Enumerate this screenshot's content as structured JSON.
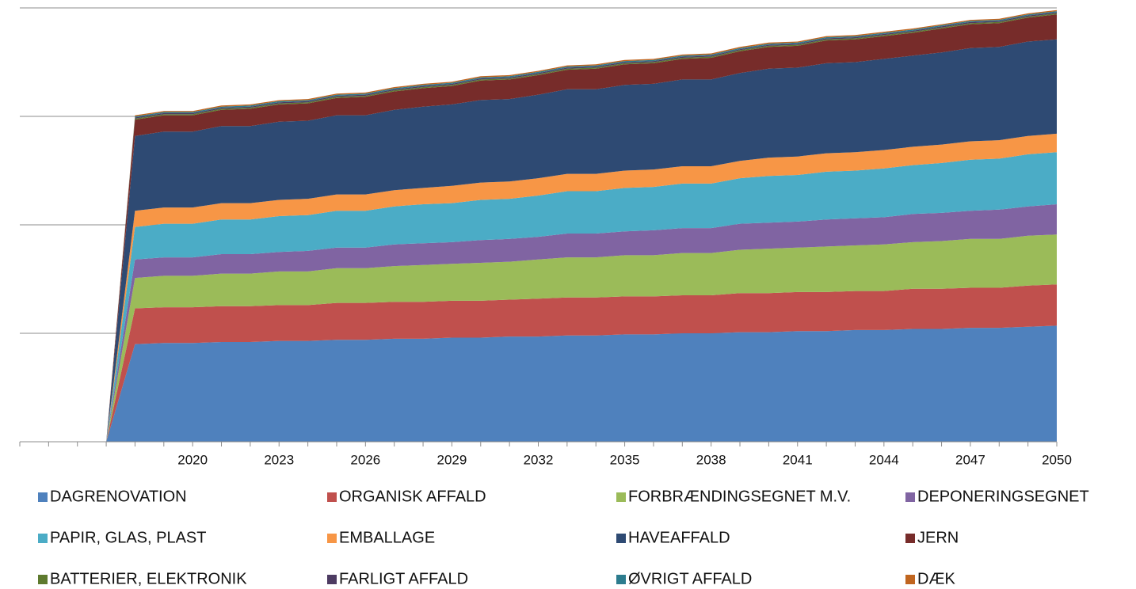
{
  "chart_data": {
    "type": "stacked_area",
    "categories": [
      null,
      null,
      null,
      null,
      null,
      null,
      "2020",
      null,
      null,
      "2023",
      null,
      null,
      "2026",
      null,
      null,
      "2029",
      null,
      null,
      "2032",
      null,
      null,
      "2035",
      null,
      null,
      "2038",
      null,
      null,
      "2041",
      null,
      null,
      "2044",
      null,
      null,
      "2047",
      null,
      null,
      "2050"
    ],
    "ylim": [
      0,
      4
    ],
    "yticks": [
      0,
      1,
      2,
      3,
      4
    ],
    "grid": true,
    "legend": "bottom",
    "series": [
      {
        "name": "DAGRENOVATION",
        "color": "#4f81bd",
        "values": [
          null,
          null,
          null,
          0,
          0.9,
          0.91,
          0.91,
          0.92,
          0.92,
          0.93,
          0.93,
          0.94,
          0.94,
          0.95,
          0.95,
          0.96,
          0.96,
          0.97,
          0.97,
          0.98,
          0.98,
          0.99,
          0.99,
          1.0,
          1.0,
          1.01,
          1.01,
          1.02,
          1.02,
          1.03,
          1.03,
          1.04,
          1.04,
          1.05,
          1.05,
          1.06,
          1.07
        ]
      },
      {
        "name": "ORGANISK AFFALD",
        "color": "#c0504d",
        "values": [
          null,
          null,
          null,
          0,
          0.33,
          0.33,
          0.33,
          0.33,
          0.33,
          0.33,
          0.33,
          0.34,
          0.34,
          0.34,
          0.34,
          0.34,
          0.34,
          0.34,
          0.35,
          0.35,
          0.35,
          0.35,
          0.35,
          0.35,
          0.35,
          0.36,
          0.36,
          0.36,
          0.36,
          0.36,
          0.36,
          0.37,
          0.37,
          0.37,
          0.37,
          0.38,
          0.38
        ]
      },
      {
        "name": "FORBRÆNDINGSEGNET M.V.",
        "color": "#9bbb59",
        "values": [
          null,
          null,
          null,
          0,
          0.28,
          0.29,
          0.29,
          0.3,
          0.3,
          0.31,
          0.31,
          0.32,
          0.32,
          0.33,
          0.34,
          0.34,
          0.35,
          0.35,
          0.36,
          0.37,
          0.37,
          0.38,
          0.38,
          0.39,
          0.39,
          0.4,
          0.41,
          0.41,
          0.42,
          0.42,
          0.43,
          0.43,
          0.44,
          0.45,
          0.45,
          0.46,
          0.46
        ]
      },
      {
        "name": "DEPONERINGSEGNET",
        "color": "#8064a2",
        "values": [
          null,
          null,
          null,
          0,
          0.17,
          0.17,
          0.17,
          0.18,
          0.18,
          0.18,
          0.19,
          0.19,
          0.19,
          0.2,
          0.2,
          0.2,
          0.21,
          0.21,
          0.21,
          0.22,
          0.22,
          0.22,
          0.23,
          0.23,
          0.23,
          0.24,
          0.24,
          0.24,
          0.25,
          0.25,
          0.25,
          0.26,
          0.26,
          0.26,
          0.27,
          0.27,
          0.28
        ]
      },
      {
        "name": "PAPIR, GLAS, PLAST",
        "color": "#4bacc6",
        "values": [
          null,
          null,
          null,
          0,
          0.3,
          0.31,
          0.31,
          0.32,
          0.32,
          0.33,
          0.33,
          0.34,
          0.34,
          0.35,
          0.36,
          0.36,
          0.37,
          0.37,
          0.38,
          0.39,
          0.39,
          0.4,
          0.4,
          0.41,
          0.41,
          0.42,
          0.43,
          0.43,
          0.44,
          0.44,
          0.45,
          0.45,
          0.46,
          0.47,
          0.47,
          0.48,
          0.48
        ]
      },
      {
        "name": "EMBALLAGE",
        "color": "#f79646",
        "values": [
          null,
          null,
          null,
          0,
          0.15,
          0.15,
          0.15,
          0.15,
          0.15,
          0.15,
          0.15,
          0.15,
          0.15,
          0.15,
          0.15,
          0.16,
          0.16,
          0.16,
          0.16,
          0.16,
          0.16,
          0.16,
          0.16,
          0.16,
          0.16,
          0.16,
          0.17,
          0.17,
          0.17,
          0.17,
          0.17,
          0.17,
          0.17,
          0.17,
          0.17,
          0.17,
          0.17
        ]
      },
      {
        "name": "HAVEAFFALD",
        "color": "#2e4a73",
        "values": [
          null,
          null,
          null,
          0,
          0.69,
          0.7,
          0.7,
          0.71,
          0.71,
          0.72,
          0.72,
          0.73,
          0.73,
          0.74,
          0.75,
          0.75,
          0.76,
          0.76,
          0.77,
          0.78,
          0.78,
          0.79,
          0.79,
          0.8,
          0.8,
          0.81,
          0.82,
          0.82,
          0.83,
          0.83,
          0.84,
          0.84,
          0.85,
          0.86,
          0.86,
          0.87,
          0.87
        ]
      },
      {
        "name": "JERN",
        "color": "#772c2a",
        "values": [
          null,
          null,
          null,
          0,
          0.15,
          0.15,
          0.15,
          0.15,
          0.16,
          0.16,
          0.16,
          0.16,
          0.17,
          0.17,
          0.17,
          0.17,
          0.18,
          0.18,
          0.18,
          0.18,
          0.19,
          0.19,
          0.19,
          0.19,
          0.2,
          0.2,
          0.2,
          0.2,
          0.21,
          0.21,
          0.21,
          0.21,
          0.22,
          0.22,
          0.22,
          0.22,
          0.23
        ]
      },
      {
        "name": "BATTERIER, ELEKTRONIK",
        "color": "#5e7a2e",
        "values": [
          null,
          null,
          null,
          0,
          0.01,
          0.01,
          0.01,
          0.01,
          0.01,
          0.01,
          0.01,
          0.01,
          0.01,
          0.01,
          0.01,
          0.01,
          0.01,
          0.01,
          0.01,
          0.01,
          0.01,
          0.01,
          0.01,
          0.01,
          0.01,
          0.01,
          0.01,
          0.01,
          0.01,
          0.01,
          0.01,
          0.01,
          0.01,
          0.01,
          0.01,
          0.01,
          0.01
        ]
      },
      {
        "name": "FARLIGT AFFALD",
        "color": "#4d3b62",
        "values": [
          null,
          null,
          null,
          0,
          0.01,
          0.01,
          0.01,
          0.01,
          0.01,
          0.01,
          0.01,
          0.01,
          0.01,
          0.01,
          0.01,
          0.01,
          0.01,
          0.01,
          0.01,
          0.01,
          0.01,
          0.01,
          0.01,
          0.01,
          0.01,
          0.01,
          0.01,
          0.01,
          0.01,
          0.01,
          0.01,
          0.01,
          0.01,
          0.01,
          0.01,
          0.01,
          0.01
        ]
      },
      {
        "name": "ØVRIGT AFFALD",
        "color": "#2c7c8e",
        "values": [
          null,
          null,
          null,
          0,
          0.01,
          0.01,
          0.01,
          0.01,
          0.01,
          0.01,
          0.01,
          0.01,
          0.01,
          0.01,
          0.01,
          0.01,
          0.01,
          0.01,
          0.01,
          0.01,
          0.01,
          0.01,
          0.01,
          0.01,
          0.01,
          0.01,
          0.01,
          0.01,
          0.01,
          0.01,
          0.01,
          0.01,
          0.01,
          0.01,
          0.01,
          0.01,
          0.01
        ]
      },
      {
        "name": "DÆK",
        "color": "#c0651f",
        "values": [
          null,
          null,
          null,
          0,
          0.01,
          0.01,
          0.01,
          0.01,
          0.01,
          0.01,
          0.01,
          0.01,
          0.01,
          0.01,
          0.01,
          0.01,
          0.01,
          0.01,
          0.01,
          0.01,
          0.01,
          0.01,
          0.01,
          0.01,
          0.01,
          0.01,
          0.01,
          0.01,
          0.01,
          0.01,
          0.01,
          0.01,
          0.01,
          0.01,
          0.01,
          0.01,
          0.01
        ]
      }
    ]
  }
}
